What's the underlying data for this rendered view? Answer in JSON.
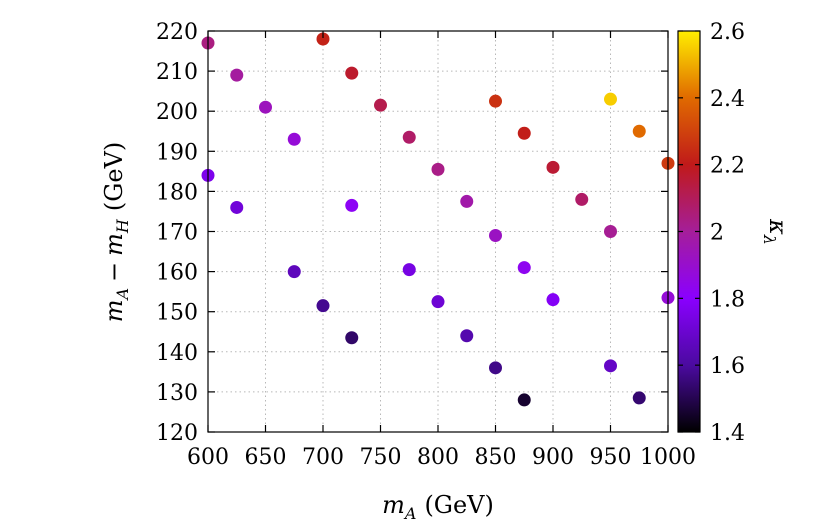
{
  "chart_data": {
    "type": "scatter",
    "xlabel": {
      "var": "m",
      "sub": "A",
      "unit": "(GeV)"
    },
    "ylabel": {
      "a": "m",
      "a_sub": "A",
      "op": "−",
      "b": "m",
      "b_sub": "H",
      "unit": "(GeV)"
    },
    "xlim": [
      600,
      1000
    ],
    "ylim": [
      120,
      220
    ],
    "xticks": [
      "600",
      "650",
      "700",
      "750",
      "800",
      "850",
      "900",
      "950",
      "1000"
    ],
    "yticks": [
      "120",
      "130",
      "140",
      "150",
      "160",
      "170",
      "180",
      "190",
      "200",
      "210",
      "220"
    ],
    "grid": true,
    "colorbar": {
      "label": "κ",
      "label_sub": "λ",
      "range": [
        1.4,
        2.6
      ],
      "ticks": [
        "1.4",
        "1.6",
        "1.8",
        "2",
        "2.2",
        "2.4",
        "2.6"
      ],
      "colormap": [
        "#000000",
        "#4b0aa0",
        "#8a00ff",
        "#a51e9a",
        "#c01a1a",
        "#e06a00",
        "#ffee00"
      ]
    },
    "points": [
      {
        "x": 600,
        "y": 217,
        "c": 2.04
      },
      {
        "x": 600,
        "y": 184,
        "c": 1.76
      },
      {
        "x": 625,
        "y": 209,
        "c": 1.99
      },
      {
        "x": 625,
        "y": 176,
        "c": 1.72
      },
      {
        "x": 650,
        "y": 201,
        "c": 1.93
      },
      {
        "x": 675,
        "y": 193,
        "c": 1.88
      },
      {
        "x": 675,
        "y": 160,
        "c": 1.66
      },
      {
        "x": 700,
        "y": 218,
        "c": 2.22
      },
      {
        "x": 700,
        "y": 151.5,
        "c": 1.58
      },
      {
        "x": 725,
        "y": 209.5,
        "c": 2.17
      },
      {
        "x": 725,
        "y": 176.5,
        "c": 1.82
      },
      {
        "x": 725,
        "y": 143.5,
        "c": 1.53
      },
      {
        "x": 750,
        "y": 201.5,
        "c": 2.12
      },
      {
        "x": 775,
        "y": 193.5,
        "c": 2.08
      },
      {
        "x": 775,
        "y": 160.5,
        "c": 1.74
      },
      {
        "x": 800,
        "y": 185.5,
        "c": 2.03
      },
      {
        "x": 800,
        "y": 152.5,
        "c": 1.71
      },
      {
        "x": 825,
        "y": 177.5,
        "c": 1.97
      },
      {
        "x": 825,
        "y": 144,
        "c": 1.63
      },
      {
        "x": 850,
        "y": 202.5,
        "c": 2.26
      },
      {
        "x": 850,
        "y": 169,
        "c": 1.92
      },
      {
        "x": 850,
        "y": 136,
        "c": 1.57
      },
      {
        "x": 875,
        "y": 194.5,
        "c": 2.21
      },
      {
        "x": 875,
        "y": 161,
        "c": 1.83
      },
      {
        "x": 875,
        "y": 128,
        "c": 1.46
      },
      {
        "x": 900,
        "y": 186,
        "c": 2.16
      },
      {
        "x": 900,
        "y": 153,
        "c": 1.78
      },
      {
        "x": 925,
        "y": 178,
        "c": 2.08
      },
      {
        "x": 950,
        "y": 203,
        "c": 2.55
      },
      {
        "x": 950,
        "y": 170,
        "c": 2.01
      },
      {
        "x": 950,
        "y": 136.5,
        "c": 1.68
      },
      {
        "x": 975,
        "y": 195,
        "c": 2.4
      },
      {
        "x": 975,
        "y": 128.5,
        "c": 1.54
      },
      {
        "x": 1000,
        "y": 187,
        "c": 2.28
      },
      {
        "x": 1000,
        "y": 153.5,
        "c": 1.88
      }
    ]
  }
}
